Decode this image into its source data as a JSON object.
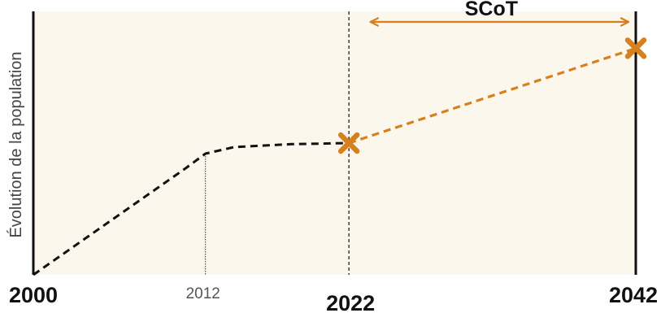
{
  "chart_data": {
    "type": "line",
    "title": "",
    "xlabel": "",
    "ylabel": "Évolution de la population",
    "xlim": [
      2000,
      2042
    ],
    "ylim": [
      0,
      100
    ],
    "grid": false,
    "x_ticks": [
      {
        "value": 2000,
        "label": "2000",
        "emphasis": "bold"
      },
      {
        "value": 2012,
        "label": "2012",
        "emphasis": "light"
      },
      {
        "value": 2022,
        "label": "2022",
        "emphasis": "bold"
      },
      {
        "value": 2042,
        "label": "2042",
        "emphasis": "bold"
      }
    ],
    "series": [
      {
        "style": "dashed",
        "color": "#111111",
        "points": [
          {
            "x": 2000,
            "y": 0
          },
          {
            "x": 2010.5,
            "y": 40
          },
          {
            "x": 2012,
            "y": 46
          },
          {
            "x": 2014,
            "y": 48.5
          },
          {
            "x": 2018,
            "y": 49.6
          },
          {
            "x": 2022,
            "y": 50
          }
        ]
      },
      {
        "style": "dashed",
        "color": "#D7801E",
        "markers": "x",
        "points": [
          {
            "x": 2022,
            "y": 50
          },
          {
            "x": 2042,
            "y": 86
          }
        ]
      }
    ],
    "annotations": [
      {
        "type": "span-arrow",
        "label": "SCoT",
        "from": 2023.5,
        "to": 2041.5,
        "y": 96,
        "color": "#D7801E"
      }
    ],
    "colors": {
      "background": "#FCF7EC",
      "projection": "#D7801E",
      "history": "#111111"
    }
  }
}
